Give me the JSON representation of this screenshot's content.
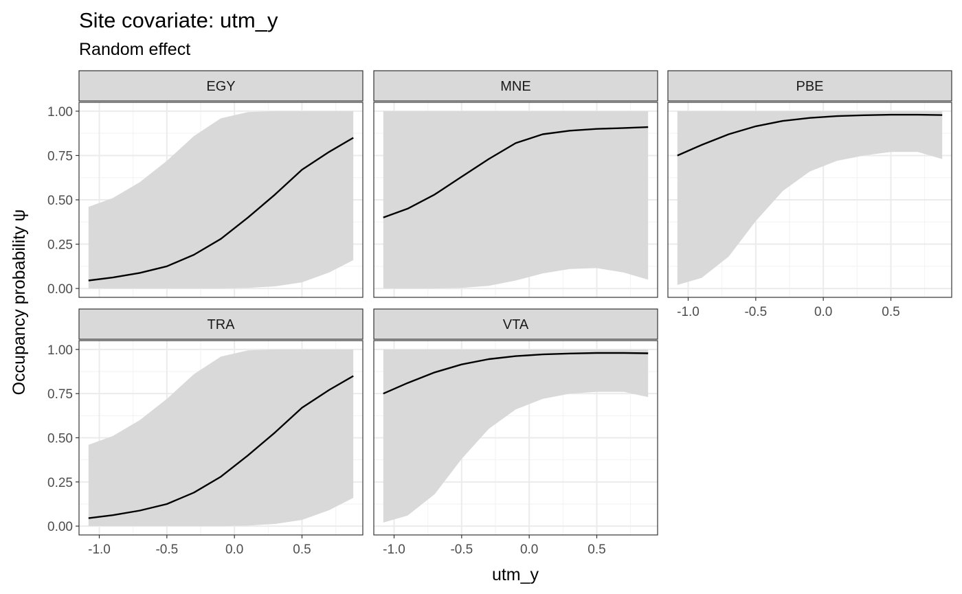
{
  "chart_data": {
    "type": "line",
    "title": "Site covariate: utm_y",
    "subtitle": "Random effect",
    "xlabel": "utm_y",
    "ylabel": "Occupancy probability  ψ",
    "xlim": [
      -1.15,
      0.95
    ],
    "ylim": [
      -0.05,
      1.05
    ],
    "x_ticks": [
      -1.0,
      -0.5,
      0.0,
      0.5
    ],
    "x_tick_labels": [
      "-1.0",
      "-0.5",
      "0.0",
      "0.5"
    ],
    "y_ticks": [
      0.0,
      0.25,
      0.5,
      0.75,
      1.0
    ],
    "y_tick_labels": [
      "0.00",
      "0.25",
      "0.50",
      "0.75",
      "1.00"
    ],
    "grid": true,
    "legend": "none",
    "colors": {
      "line": "#000000",
      "ribbon": "#d9d9d9",
      "strip_fill": "#d9d9d9",
      "panel_border": "#333333",
      "grid": "#ebebeb"
    },
    "x": [
      -1.08,
      -0.9,
      -0.7,
      -0.5,
      -0.3,
      -0.1,
      0.1,
      0.3,
      0.5,
      0.7,
      0.88
    ],
    "panels": [
      {
        "label": "EGY",
        "mean": [
          0.045,
          0.062,
          0.088,
          0.125,
          0.19,
          0.28,
          0.4,
          0.53,
          0.67,
          0.77,
          0.85
        ],
        "lower": [
          0.0,
          0.0,
          0.0,
          0.0,
          0.0,
          0.0,
          0.003,
          0.012,
          0.035,
          0.09,
          0.16
        ],
        "upper": [
          0.46,
          0.51,
          0.6,
          0.72,
          0.86,
          0.96,
          0.995,
          1.0,
          1.0,
          1.0,
          1.0
        ]
      },
      {
        "label": "MNE",
        "mean": [
          0.4,
          0.45,
          0.53,
          0.63,
          0.73,
          0.82,
          0.87,
          0.89,
          0.9,
          0.905,
          0.91
        ],
        "lower": [
          0.0,
          0.0,
          0.0,
          0.003,
          0.015,
          0.045,
          0.085,
          0.11,
          0.115,
          0.09,
          0.05
        ],
        "upper": [
          1.0,
          1.0,
          1.0,
          1.0,
          1.0,
          1.0,
          1.0,
          1.0,
          1.0,
          1.0,
          1.0
        ]
      },
      {
        "label": "PBE",
        "mean": [
          0.75,
          0.81,
          0.87,
          0.915,
          0.945,
          0.962,
          0.972,
          0.977,
          0.98,
          0.98,
          0.978
        ],
        "lower": [
          0.02,
          0.06,
          0.18,
          0.38,
          0.55,
          0.66,
          0.72,
          0.75,
          0.77,
          0.77,
          0.73
        ],
        "upper": [
          1.0,
          1.0,
          1.0,
          1.0,
          1.0,
          1.0,
          1.0,
          1.0,
          1.0,
          1.0,
          1.0
        ]
      },
      {
        "label": "TRA",
        "mean": [
          0.045,
          0.062,
          0.088,
          0.125,
          0.19,
          0.28,
          0.4,
          0.53,
          0.67,
          0.77,
          0.85
        ],
        "lower": [
          0.0,
          0.0,
          0.0,
          0.0,
          0.0,
          0.0,
          0.003,
          0.012,
          0.035,
          0.09,
          0.16
        ],
        "upper": [
          0.46,
          0.51,
          0.6,
          0.72,
          0.86,
          0.96,
          0.995,
          1.0,
          1.0,
          1.0,
          1.0
        ]
      },
      {
        "label": "VTA",
        "mean": [
          0.75,
          0.81,
          0.87,
          0.915,
          0.945,
          0.962,
          0.972,
          0.977,
          0.98,
          0.98,
          0.978
        ],
        "lower": [
          0.02,
          0.06,
          0.18,
          0.38,
          0.55,
          0.66,
          0.72,
          0.75,
          0.76,
          0.76,
          0.73
        ],
        "upper": [
          1.0,
          1.0,
          1.0,
          1.0,
          1.0,
          1.0,
          1.0,
          1.0,
          1.0,
          1.0,
          1.0
        ]
      }
    ]
  }
}
